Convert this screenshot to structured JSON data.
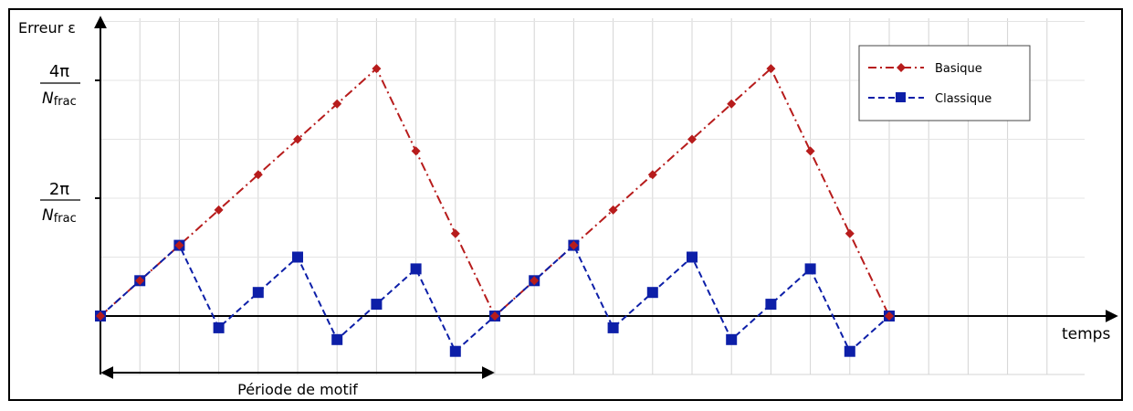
{
  "chart_data": {
    "type": "line",
    "ylabel": "Erreur ε",
    "xlabel": "temps",
    "y_ticks": [
      {
        "value": 2,
        "numerator": "2π",
        "denominator_main": "N",
        "denominator_sub": "frac"
      },
      {
        "value": 4,
        "numerator": "4π",
        "denominator_main": "N",
        "denominator_sub": "frac"
      }
    ],
    "grid": true,
    "ylim": [
      -1.0,
      5.0
    ],
    "xlim": [
      0,
      25.8
    ],
    "legend_position": "top-right",
    "annotation": "Période de motif",
    "annotation_span": [
      0,
      10
    ],
    "series": [
      {
        "name": "Basique",
        "color": "#b71c1c",
        "marker": "diamond",
        "dash": "dash-dot",
        "x": [
          0,
          1,
          2,
          3,
          4,
          5,
          6,
          7,
          8,
          9,
          10,
          11,
          12,
          13,
          14,
          15,
          16,
          17,
          18,
          19,
          20
        ],
        "y": [
          0,
          0.6,
          1.2,
          1.8,
          2.4,
          3.0,
          3.6,
          4.2,
          2.8,
          1.4,
          0,
          0.6,
          1.2,
          1.8,
          2.4,
          3.0,
          3.6,
          4.2,
          2.8,
          1.4,
          0
        ]
      },
      {
        "name": "Classique",
        "color": "#0d1fa8",
        "marker": "square",
        "dash": "dashed",
        "x": [
          0,
          1,
          2,
          3,
          4,
          5,
          6,
          7,
          8,
          9,
          10,
          11,
          12,
          13,
          14,
          15,
          16,
          17,
          18,
          19,
          20
        ],
        "y": [
          0,
          0.6,
          1.2,
          -0.2,
          0.4,
          1.0,
          -0.4,
          0.2,
          0.8,
          -0.6,
          0,
          0.6,
          1.2,
          -0.2,
          0.4,
          1.0,
          -0.4,
          0.2,
          0.8,
          -0.6,
          0
        ]
      }
    ]
  }
}
